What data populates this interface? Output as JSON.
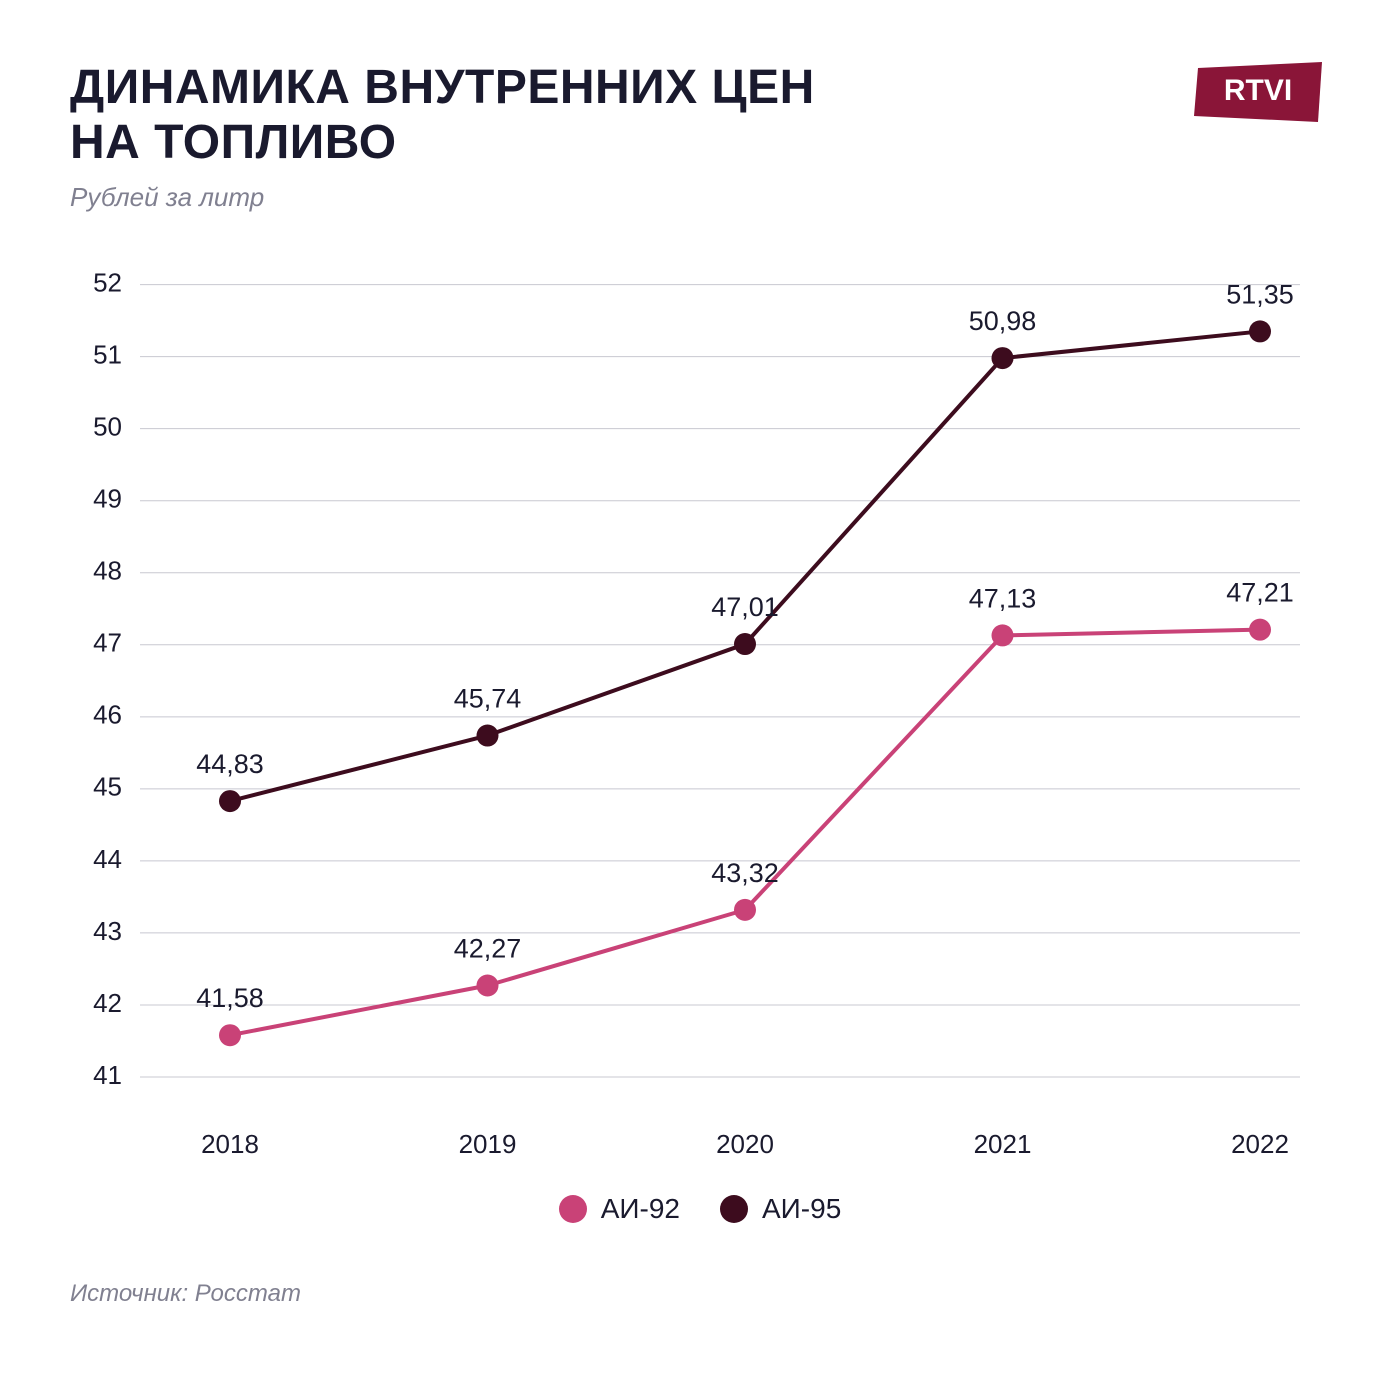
{
  "title_line1": "ДИНАМИКА ВНУТРЕННИХ ЦЕН",
  "title_line2": "НА ТОПЛИВО",
  "subtitle": "Рублей за литр",
  "logo_text": "RTVI",
  "logo_fill": "#8a1538",
  "source": "Источник: Росстат",
  "chart": {
    "type": "line",
    "background_color": "#ffffff",
    "grid_color": "#c8c8d0",
    "text_color": "#1a1a2e",
    "x_categories": [
      "2018",
      "2019",
      "2020",
      "2021",
      "2022"
    ],
    "y_ticks": [
      41,
      42,
      43,
      44,
      45,
      46,
      47,
      48,
      49,
      50,
      51,
      52
    ],
    "ylim": [
      40.5,
      52.3
    ],
    "line_width": 4,
    "marker_radius": 11,
    "label_fontsize": 27,
    "tick_fontsize": 26,
    "series": [
      {
        "name": "АИ-92",
        "color": "#c94277",
        "values": [
          41.58,
          42.27,
          43.32,
          47.13,
          47.21
        ],
        "labels": [
          "41,58",
          "42,27",
          "43,32",
          "47,13",
          "47,21"
        ]
      },
      {
        "name": "АИ-95",
        "color": "#3d0c1e",
        "values": [
          44.83,
          45.74,
          47.01,
          50.98,
          51.35
        ],
        "labels": [
          "44,83",
          "45,74",
          "47,01",
          "50,98",
          "51,35"
        ]
      }
    ]
  }
}
